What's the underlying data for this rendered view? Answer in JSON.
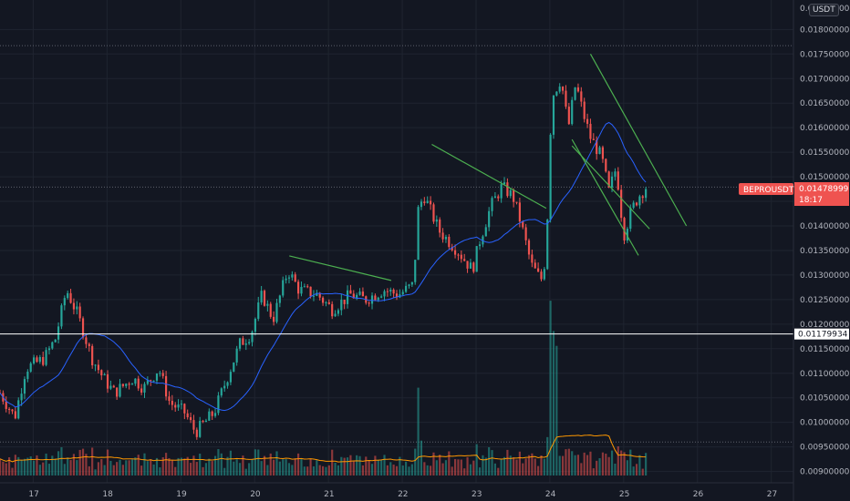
{
  "unit_label": "USDT",
  "colors": {
    "background": "#131722",
    "grid": "#1f2430",
    "up": "#26a69a",
    "down": "#ef5350",
    "ma": "#2962ff",
    "volume_ma": "#ff9800",
    "trendline": "#4caf50",
    "price_tag": "#ef5350"
  },
  "chart_data": {
    "type": "candlestick",
    "symbol": "BEPROUSDT",
    "last_price_label": "0.01478999",
    "countdown_label": "18:17",
    "reference_level": 0.01179934,
    "reference_level_label": "0.01179934",
    "y_ticks": [
      "0.00900000",
      "0.00950000",
      "0.01000000",
      "0.01050000",
      "0.01100000",
      "0.01150000",
      "0.01200000",
      "0.01250000",
      "0.01300000",
      "0.01350000",
      "0.01400000",
      "0.01450000",
      "0.01500000",
      "0.01550000",
      "0.01600000",
      "0.01650000",
      "0.01700000",
      "0.01750000",
      "0.01800000"
    ],
    "y_top_partial_tick": "0.01850000",
    "y_range": [
      0.00877,
      0.0186
    ],
    "x_ticks": [
      "17",
      "18",
      "19",
      "20",
      "21",
      "22",
      "23",
      "24",
      "25",
      "26",
      "27"
    ],
    "x_range_days": [
      16.55,
      27.3
    ],
    "dotted_levels": [
      0.01767,
      0.01478999,
      0.0096
    ],
    "candle_anchors": [
      [
        16.55,
        0.0106
      ],
      [
        16.75,
        0.0101
      ],
      [
        16.9,
        0.0111
      ],
      [
        17.15,
        0.0113
      ],
      [
        17.3,
        0.0117
      ],
      [
        17.45,
        0.0127
      ],
      [
        17.6,
        0.0122
      ],
      [
        17.8,
        0.0113
      ],
      [
        17.95,
        0.0109
      ],
      [
        18.1,
        0.0106
      ],
      [
        18.35,
        0.0109
      ],
      [
        18.5,
        0.0107
      ],
      [
        18.7,
        0.0111
      ],
      [
        18.85,
        0.0104
      ],
      [
        19.05,
        0.0102
      ],
      [
        19.2,
        0.0098
      ],
      [
        19.45,
        0.0102
      ],
      [
        19.6,
        0.0108
      ],
      [
        19.8,
        0.0116
      ],
      [
        19.95,
        0.0118
      ],
      [
        20.1,
        0.0126
      ],
      [
        20.25,
        0.0121
      ],
      [
        20.45,
        0.0131
      ],
      [
        20.6,
        0.0127
      ],
      [
        20.85,
        0.0126
      ],
      [
        21.05,
        0.0123
      ],
      [
        21.3,
        0.0126
      ],
      [
        21.5,
        0.0125
      ],
      [
        21.75,
        0.0127
      ],
      [
        21.95,
        0.0126
      ],
      [
        22.15,
        0.0128
      ],
      [
        22.22,
        0.0144
      ],
      [
        22.3,
        0.0146
      ],
      [
        22.5,
        0.0139
      ],
      [
        22.75,
        0.0135
      ],
      [
        22.95,
        0.0131
      ],
      [
        23.05,
        0.0137
      ],
      [
        23.2,
        0.0144
      ],
      [
        23.35,
        0.0148
      ],
      [
        23.5,
        0.0146
      ],
      [
        23.6,
        0.0141
      ],
      [
        23.75,
        0.0132
      ],
      [
        23.88,
        0.0129
      ],
      [
        23.95,
        0.0134
      ],
      [
        24.0,
        0.0158
      ],
      [
        24.05,
        0.0167
      ],
      [
        24.15,
        0.017
      ],
      [
        24.25,
        0.016
      ],
      [
        24.35,
        0.0169
      ],
      [
        24.45,
        0.0163
      ],
      [
        24.55,
        0.0158
      ],
      [
        24.7,
        0.0154
      ],
      [
        24.8,
        0.0147
      ],
      [
        24.9,
        0.0152
      ],
      [
        25.0,
        0.0138
      ],
      [
        25.1,
        0.0143
      ],
      [
        25.2,
        0.0146
      ],
      [
        25.3,
        0.01479
      ]
    ],
    "trendlines": [
      {
        "from": [
          20.47,
          0.01339
        ],
        "to": [
          21.85,
          0.01289
        ]
      },
      {
        "from": [
          22.4,
          0.01566
        ],
        "to": [
          23.95,
          0.01436
        ]
      },
      {
        "from": [
          24.3,
          0.01563
        ],
        "to": [
          25.35,
          0.01394
        ]
      },
      {
        "from": [
          24.55,
          0.0175
        ],
        "to": [
          25.85,
          0.014
        ]
      },
      {
        "from": [
          24.3,
          0.01576
        ],
        "to": [
          25.2,
          0.0134
        ]
      }
    ]
  }
}
